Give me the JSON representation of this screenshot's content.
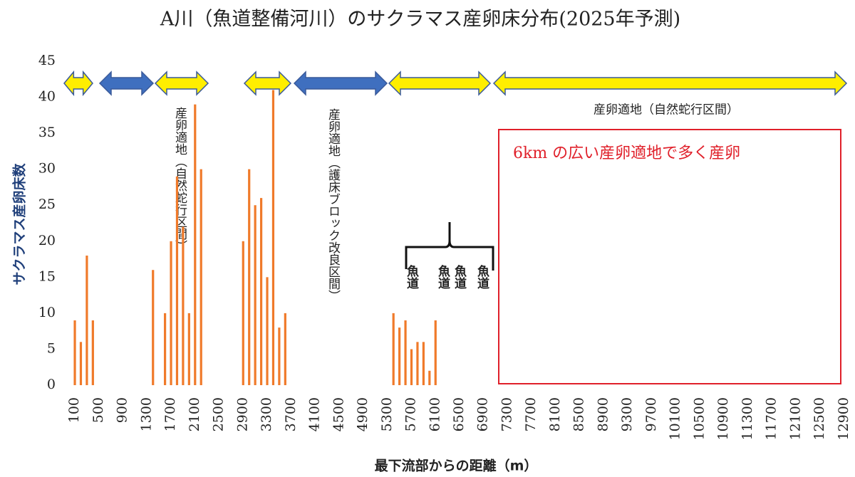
{
  "chart_data": {
    "type": "bar",
    "title": "A川（魚道整備河川）のサクラマス産卵床分布(2025年予測)",
    "x_label": "最下流部からの距離（m）",
    "y_label": "サクラマス産卵床数",
    "x": [
      100,
      200,
      300,
      400,
      1400,
      1600,
      1700,
      1800,
      1900,
      2000,
      2100,
      2200,
      2900,
      3000,
      3100,
      3200,
      3300,
      3400,
      3500,
      3600,
      5400,
      5500,
      5600,
      5700,
      5800,
      5900,
      6000,
      6100
    ],
    "values": [
      9,
      6,
      18,
      9,
      16,
      10,
      20,
      29,
      22,
      10,
      39,
      30,
      20,
      30,
      25,
      26,
      15,
      41,
      8,
      10,
      10,
      8,
      9,
      5,
      6,
      6,
      2,
      9
    ],
    "color": "#f07a2a",
    "xlim": [
      0,
      13000
    ],
    "xticks": [
      100,
      500,
      900,
      1300,
      1700,
      2100,
      2500,
      2900,
      3300,
      3700,
      4100,
      4500,
      4900,
      5300,
      5700,
      6100,
      6500,
      6900,
      7300,
      7700,
      8100,
      8500,
      8900,
      9300,
      9700,
      10100,
      10500,
      10900,
      11300,
      11700,
      12100,
      12500,
      12900
    ],
    "ylim": [
      0,
      45
    ],
    "yticks": [
      0,
      5,
      10,
      15,
      20,
      25,
      30,
      35,
      40,
      45
    ],
    "annotations": [
      "産卵適地（自然蛇行区間）",
      "産卵適地（護床ブロック改良区間）",
      "産卵適地（自然蛇行区間）",
      "6km の広い産卵適地で多く産卵",
      "魚道",
      "魚道",
      "魚道",
      "魚道"
    ]
  }
}
